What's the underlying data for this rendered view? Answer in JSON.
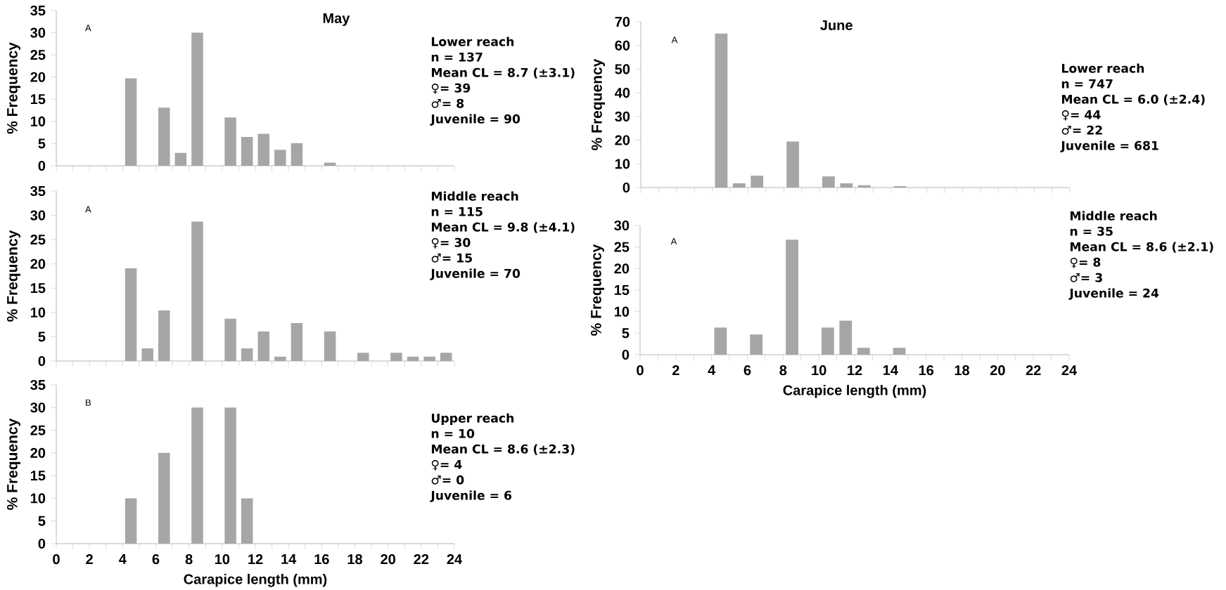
{
  "chart_data": [
    {
      "type": "histogram",
      "title": "May",
      "ylabel": "% Frequency",
      "bins": [
        0,
        1,
        2,
        3,
        4,
        5,
        6,
        7,
        8,
        9,
        10,
        11,
        12,
        13,
        14,
        15,
        16,
        17,
        18,
        19,
        20,
        21,
        22,
        23,
        24
      ],
      "values": [
        0,
        0,
        0,
        0,
        19.7,
        0,
        13.1,
        2.9,
        30,
        0,
        10.9,
        6.5,
        7.2,
        3.6,
        5.1,
        0,
        0.7,
        0,
        0,
        0,
        0,
        0,
        0,
        0
      ],
      "color": "#a6a6a6",
      "xlim": [
        0,
        24
      ],
      "ylim": [
        0,
        35
      ],
      "yticks": [
        0,
        5,
        10,
        15,
        20,
        25,
        30,
        35
      ],
      "xticks": [
        0,
        {
          "value": 1,
          "label": null
        },
        2,
        {
          "value": 3,
          "label": null
        },
        4,
        {
          "value": 5,
          "label": null
        },
        6,
        {
          "value": 7,
          "label": null
        },
        8,
        {
          "value": 9,
          "label": null
        },
        10,
        {
          "value": 11,
          "label": null
        },
        12,
        {
          "value": 13,
          "label": null
        },
        14,
        {
          "value": 15,
          "label": null
        },
        16,
        {
          "value": 17,
          "label": null
        },
        18,
        {
          "value": 19,
          "label": null
        },
        20,
        {
          "value": 21,
          "label": null
        },
        22,
        {
          "value": 23,
          "label": null
        },
        24
      ],
      "tick_labels": "y",
      "annotations": [
        "A",
        "Lower reach",
        "n =  137",
        "Mean CL = 8.7  (±3.1)",
        "♀= 39",
        "♂=  8",
        "Juvenile =  90"
      ]
    },
    {
      "type": "histogram",
      "title": "June",
      "ylabel": "% Frequency",
      "bins": [
        0,
        1,
        2,
        3,
        4,
        5,
        6,
        7,
        8,
        9,
        10,
        11,
        12,
        13,
        14,
        15,
        16,
        17,
        18,
        19,
        20,
        21,
        22,
        23,
        24
      ],
      "values": [
        0,
        0,
        0,
        0,
        65,
        1.8,
        5.0,
        0,
        19.4,
        0,
        4.7,
        1.8,
        1.0,
        0,
        0.6,
        0,
        0,
        0,
        0,
        0,
        0,
        0,
        0,
        0
      ],
      "color": "#a6a6a6",
      "xlim": [
        0,
        24
      ],
      "ylim": [
        0,
        70
      ],
      "yticks": [
        0,
        10,
        20,
        30,
        40,
        50,
        60,
        70
      ],
      "xticks": [
        0,
        {
          "value": 1,
          "label": null
        },
        2,
        {
          "value": 3,
          "label": null
        },
        4,
        {
          "value": 5,
          "label": null
        },
        6,
        {
          "value": 7,
          "label": null
        },
        8,
        {
          "value": 9,
          "label": null
        },
        10,
        {
          "value": 11,
          "label": null
        },
        12,
        {
          "value": 13,
          "label": null
        },
        14,
        {
          "value": 15,
          "label": null
        },
        16,
        {
          "value": 17,
          "label": null
        },
        18,
        {
          "value": 19,
          "label": null
        },
        20,
        {
          "value": 21,
          "label": null
        },
        22,
        {
          "value": 23,
          "label": null
        },
        24
      ],
      "tick_labels": "y",
      "annotations": [
        "A",
        "Lower reach",
        "n = 747",
        "Mean CL =  6.0 (±2.4)",
        "♀= 44",
        "♂=  22",
        "Juvenile = 681"
      ]
    },
    {
      "type": "histogram",
      "ylabel": "% Frequency",
      "bins": [
        0,
        1,
        2,
        3,
        4,
        5,
        6,
        7,
        8,
        9,
        10,
        11,
        12,
        13,
        14,
        15,
        16,
        17,
        18,
        19,
        20,
        21,
        22,
        23,
        24
      ],
      "values": [
        0,
        0,
        0,
        0,
        19.1,
        2.6,
        10.4,
        0,
        28.7,
        0,
        8.7,
        2.6,
        6.1,
        0.9,
        7.8,
        0,
        6.1,
        0,
        1.7,
        0,
        1.7,
        0.9,
        0.9,
        1.7
      ],
      "color": "#a6a6a6",
      "xlim": [
        0,
        24
      ],
      "ylim": [
        0,
        35
      ],
      "yticks": [
        0,
        5,
        10,
        15,
        20,
        25,
        30,
        35
      ],
      "xticks": [
        0,
        {
          "value": 1,
          "label": null
        },
        2,
        {
          "value": 3,
          "label": null
        },
        4,
        {
          "value": 5,
          "label": null
        },
        6,
        {
          "value": 7,
          "label": null
        },
        8,
        {
          "value": 9,
          "label": null
        },
        10,
        {
          "value": 11,
          "label": null
        },
        12,
        {
          "value": 13,
          "label": null
        },
        14,
        {
          "value": 15,
          "label": null
        },
        16,
        {
          "value": 17,
          "label": null
        },
        18,
        {
          "value": 19,
          "label": null
        },
        20,
        {
          "value": 21,
          "label": null
        },
        22,
        {
          "value": 23,
          "label": null
        },
        24
      ],
      "tick_labels": "y",
      "annotations": [
        "A",
        "Middle reach",
        "n = 115",
        "Mean CL =  9.8 (±4.1)",
        "♀= 30",
        "♂= 15",
        "Juvenile = 70"
      ]
    },
    {
      "type": "histogram",
      "xlabel": "Carapice length (mm)",
      "ylabel": "% Frequency",
      "bins": [
        0,
        1,
        2,
        3,
        4,
        5,
        6,
        7,
        8,
        9,
        10,
        11,
        12,
        13,
        14,
        15,
        16,
        17,
        18,
        19,
        20,
        21,
        22,
        23,
        24
      ],
      "values": [
        0,
        0,
        0,
        0,
        6.3,
        0,
        4.7,
        0,
        26.7,
        0,
        6.3,
        7.9,
        1.6,
        0,
        1.6,
        0,
        0,
        0,
        0,
        0,
        0,
        0,
        0,
        0
      ],
      "color": "#a6a6a6",
      "xlim": [
        0,
        24
      ],
      "ylim": [
        0,
        30
      ],
      "yticks": [
        0,
        5,
        10,
        15,
        20,
        25,
        30
      ],
      "xticks": [
        0,
        {
          "value": 1,
          "label": null
        },
        2,
        {
          "value": 3,
          "label": null
        },
        4,
        {
          "value": 5,
          "label": null
        },
        6,
        {
          "value": 7,
          "label": null
        },
        8,
        {
          "value": 9,
          "label": null
        },
        10,
        {
          "value": 11,
          "label": null
        },
        12,
        {
          "value": 13,
          "label": null
        },
        14,
        {
          "value": 15,
          "label": null
        },
        16,
        {
          "value": 17,
          "label": null
        },
        18,
        {
          "value": 19,
          "label": null
        },
        20,
        {
          "value": 21,
          "label": null
        },
        22,
        {
          "value": 23,
          "label": null
        },
        24
      ],
      "annotations": [
        "A",
        "Middle reach",
        "n = 35",
        "Mean CL =  8.6 (±2.1)",
        "♀= 8",
        "♂= 3",
        "Juvenile = 24"
      ]
    },
    {
      "type": "histogram",
      "xlabel": "Carapice length (mm)",
      "ylabel": "% Frequency",
      "bins": [
        0,
        1,
        2,
        3,
        4,
        5,
        6,
        7,
        8,
        9,
        10,
        11,
        12,
        13,
        14,
        15,
        16,
        17,
        18,
        19,
        20,
        21,
        22,
        23,
        24
      ],
      "values": [
        0,
        0,
        0,
        0,
        10,
        0,
        20,
        0,
        30,
        0,
        30,
        10,
        0,
        0,
        0,
        0,
        0,
        0,
        0,
        0,
        0,
        0,
        0,
        0
      ],
      "color": "#a6a6a6",
      "xlim": [
        0,
        24
      ],
      "ylim": [
        0,
        35
      ],
      "yticks": [
        0,
        5,
        10,
        15,
        20,
        25,
        30,
        35
      ],
      "xticks": [
        0,
        {
          "value": 1,
          "label": null
        },
        2,
        {
          "value": 3,
          "label": null
        },
        4,
        {
          "value": 5,
          "label": null
        },
        6,
        {
          "value": 7,
          "label": null
        },
        8,
        {
          "value": 9,
          "label": null
        },
        10,
        {
          "value": 11,
          "label": null
        },
        12,
        {
          "value": 13,
          "label": null
        },
        14,
        {
          "value": 15,
          "label": null
        },
        16,
        {
          "value": 17,
          "label": null
        },
        18,
        {
          "value": 19,
          "label": null
        },
        20,
        {
          "value": 21,
          "label": null
        },
        22,
        {
          "value": 23,
          "label": null
        },
        24
      ],
      "annotations": [
        "B",
        "Upper reach",
        "n =  10",
        "Mean CL = 8.6 (±2.3)",
        "♀= 4",
        "♂= 0",
        "Juvenile =  6"
      ]
    }
  ]
}
